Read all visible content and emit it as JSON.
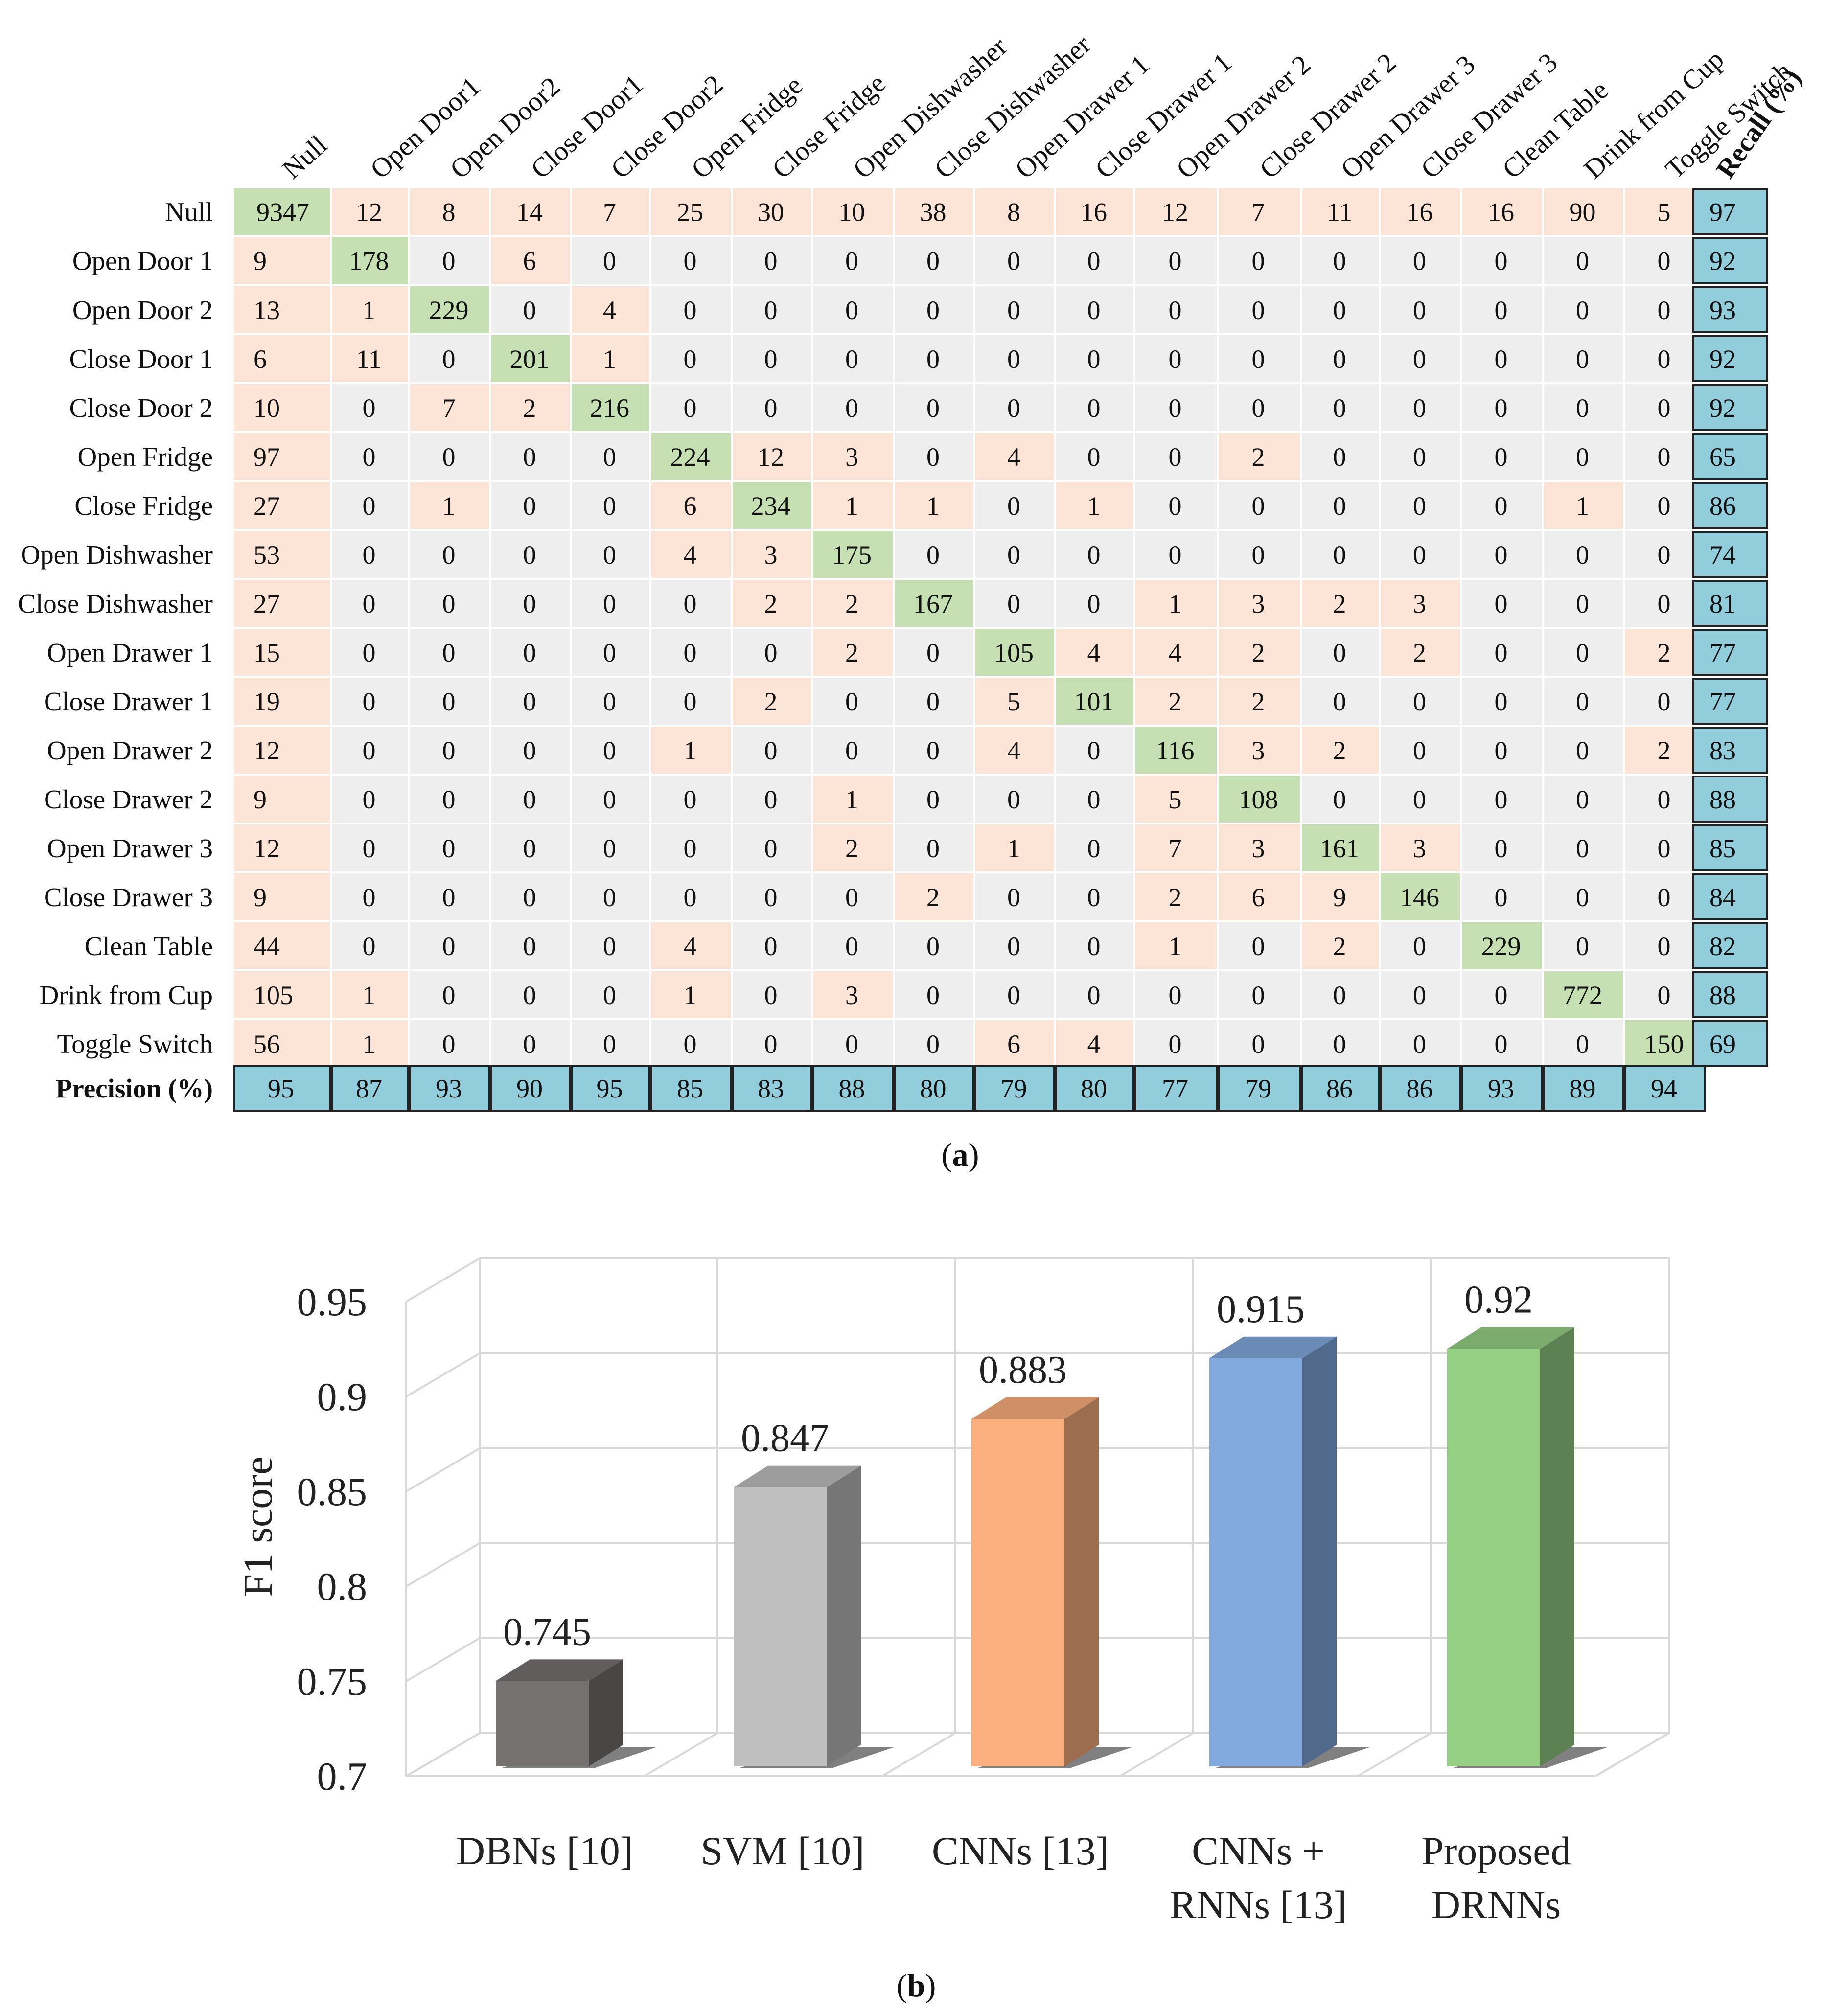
{
  "chart_data": [
    {
      "type": "table",
      "caption_letter": "a",
      "columns": [
        "Null",
        "Open Door1",
        "Open Door2",
        "Close Door1",
        "Close Door2",
        "Open Fridge",
        "Close Fridge",
        "Open Dishwasher",
        "Close Dishwasher",
        "Open Drawer 1",
        "Close Drawer 1",
        "Open Drawer 2",
        "Close Drawer 2",
        "Open Drawer 3",
        "Close Drawer 3",
        "Clean Table",
        "Drink from Cup",
        "Toggle Switch"
      ],
      "recall_header": "Recall (%)",
      "precision_label": "Precision (%)",
      "rows": [
        {
          "label": "Null",
          "values": [
            9347,
            12,
            8,
            14,
            7,
            25,
            30,
            10,
            38,
            8,
            16,
            12,
            7,
            11,
            16,
            16,
            90,
            5
          ],
          "recall": 97
        },
        {
          "label": "Open Door 1",
          "values": [
            9,
            178,
            0,
            6,
            0,
            0,
            0,
            0,
            0,
            0,
            0,
            0,
            0,
            0,
            0,
            0,
            0,
            0
          ],
          "recall": 92
        },
        {
          "label": "Open Door 2",
          "values": [
            13,
            1,
            229,
            0,
            4,
            0,
            0,
            0,
            0,
            0,
            0,
            0,
            0,
            0,
            0,
            0,
            0,
            0
          ],
          "recall": 93
        },
        {
          "label": "Close Door 1",
          "values": [
            6,
            11,
            0,
            201,
            1,
            0,
            0,
            0,
            0,
            0,
            0,
            0,
            0,
            0,
            0,
            0,
            0,
            0
          ],
          "recall": 92
        },
        {
          "label": "Close Door 2",
          "values": [
            10,
            0,
            7,
            2,
            216,
            0,
            0,
            0,
            0,
            0,
            0,
            0,
            0,
            0,
            0,
            0,
            0,
            0
          ],
          "recall": 92
        },
        {
          "label": "Open Fridge",
          "values": [
            97,
            0,
            0,
            0,
            0,
            224,
            12,
            3,
            0,
            4,
            0,
            0,
            2,
            0,
            0,
            0,
            0,
            0
          ],
          "recall": 65
        },
        {
          "label": "Close Fridge",
          "values": [
            27,
            0,
            1,
            0,
            0,
            6,
            234,
            1,
            1,
            0,
            1,
            0,
            0,
            0,
            0,
            0,
            1,
            0
          ],
          "recall": 86
        },
        {
          "label": "Open Dishwasher",
          "values": [
            53,
            0,
            0,
            0,
            0,
            4,
            3,
            175,
            0,
            0,
            0,
            0,
            0,
            0,
            0,
            0,
            0,
            0
          ],
          "recall": 74
        },
        {
          "label": "Close Dishwasher",
          "values": [
            27,
            0,
            0,
            0,
            0,
            0,
            2,
            2,
            167,
            0,
            0,
            1,
            3,
            2,
            3,
            0,
            0,
            0
          ],
          "recall": 81
        },
        {
          "label": "Open Drawer 1",
          "values": [
            15,
            0,
            0,
            0,
            0,
            0,
            0,
            2,
            0,
            105,
            4,
            4,
            2,
            0,
            2,
            0,
            0,
            2
          ],
          "recall": 77
        },
        {
          "label": "Close Drawer 1",
          "values": [
            19,
            0,
            0,
            0,
            0,
            0,
            2,
            0,
            0,
            5,
            101,
            2,
            2,
            0,
            0,
            0,
            0,
            0
          ],
          "recall": 77
        },
        {
          "label": "Open Drawer 2",
          "values": [
            12,
            0,
            0,
            0,
            0,
            1,
            0,
            0,
            0,
            4,
            0,
            116,
            3,
            2,
            0,
            0,
            0,
            2
          ],
          "recall": 83
        },
        {
          "label": "Close Drawer 2",
          "values": [
            9,
            0,
            0,
            0,
            0,
            0,
            0,
            1,
            0,
            0,
            0,
            5,
            108,
            0,
            0,
            0,
            0,
            0
          ],
          "recall": 88
        },
        {
          "label": "Open Drawer 3",
          "values": [
            12,
            0,
            0,
            0,
            0,
            0,
            0,
            2,
            0,
            1,
            0,
            7,
            3,
            161,
            3,
            0,
            0,
            0
          ],
          "recall": 85
        },
        {
          "label": "Close Drawer 3",
          "values": [
            9,
            0,
            0,
            0,
            0,
            0,
            0,
            0,
            2,
            0,
            0,
            2,
            6,
            9,
            146,
            0,
            0,
            0
          ],
          "recall": 84
        },
        {
          "label": "Clean Table",
          "values": [
            44,
            0,
            0,
            0,
            0,
            4,
            0,
            0,
            0,
            0,
            0,
            1,
            0,
            2,
            0,
            229,
            0,
            0
          ],
          "recall": 82
        },
        {
          "label": "Drink from Cup",
          "values": [
            105,
            1,
            0,
            0,
            0,
            1,
            0,
            3,
            0,
            0,
            0,
            0,
            0,
            0,
            0,
            0,
            772,
            0
          ],
          "recall": 88
        },
        {
          "label": "Toggle Switch",
          "values": [
            56,
            1,
            0,
            0,
            0,
            0,
            0,
            0,
            0,
            6,
            4,
            0,
            0,
            0,
            0,
            0,
            0,
            150
          ],
          "recall": 69
        }
      ],
      "precision": [
        95,
        87,
        93,
        90,
        95,
        85,
        83,
        88,
        80,
        79,
        80,
        77,
        79,
        86,
        86,
        93,
        89,
        94
      ],
      "colors": {
        "diagonal": "#c6e0b4",
        "nonzero": "#fce4d6",
        "zero": "#eeeeee",
        "summary": "#92cddc"
      }
    },
    {
      "type": "bar",
      "caption_letter": "b",
      "ylabel": "F1 score",
      "ylim": [
        0.7,
        0.95
      ],
      "yticks": [
        "0.7",
        "0.75",
        "0.8",
        "0.85",
        "0.9",
        "0.95"
      ],
      "categories": [
        [
          "DBNs [10]"
        ],
        [
          "SVM [10]"
        ],
        [
          "CNNs [13]"
        ],
        [
          "CNNs +",
          "RNNs [13]"
        ],
        [
          "Proposed",
          "DRNNs"
        ]
      ],
      "values": [
        0.745,
        0.847,
        0.883,
        0.915,
        0.92
      ],
      "value_labels": [
        "0.745",
        "0.847",
        "0.883",
        "0.915",
        "0.92"
      ],
      "style": "3d",
      "grid": true,
      "colors": [
        "#767171",
        "#bfbfbf",
        "#fcaf7f",
        "#82aadf",
        "#96d085"
      ]
    }
  ]
}
